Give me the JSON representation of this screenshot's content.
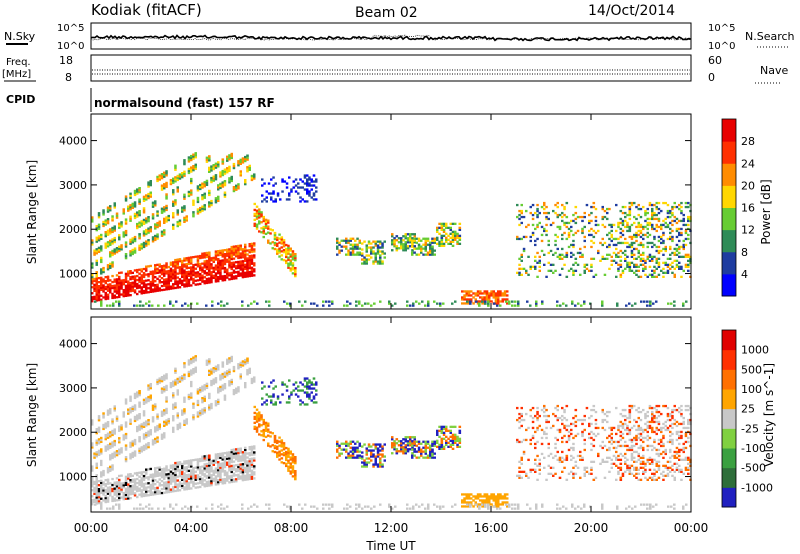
{
  "header": {
    "title": "Kodiak (fitACF)",
    "beam": "Beam 02",
    "date": "14/Oct/2014"
  },
  "nsky_panel": {
    "left_label": "N.Sky",
    "right_label": "N.Search",
    "left_ticks": [
      "10^5",
      "10^0"
    ],
    "right_ticks": [
      "10^5",
      "10^0"
    ]
  },
  "freq_panel": {
    "left_label_1": "Freq.",
    "left_label_2": "[MHz]",
    "right_label": "Nave",
    "left_ticks": [
      "18",
      "8"
    ],
    "right_ticks": [
      "60",
      "0"
    ]
  },
  "cpid_panel": {
    "label": "CPID",
    "text": "normalsound (fast) 157 RF"
  },
  "chart_data": [
    {
      "type": "heatmap",
      "name": "power",
      "ylabel": "Slant Range [km]",
      "yticks": [
        1000,
        2000,
        3000,
        4000
      ],
      "ylim": [
        200,
        4600
      ],
      "xlim": [
        0,
        24
      ],
      "colorbar_label": "Power [dB]",
      "colorbar_ticks": [
        "28",
        "24",
        "20",
        "16",
        "12",
        "8",
        "4"
      ],
      "colors": [
        "#0000ff",
        "#1e3ca0",
        "#2e8b57",
        "#66cc33",
        "#ffd700",
        "#ff8c00",
        "#ff3000",
        "#e80000"
      ]
    },
    {
      "type": "heatmap",
      "name": "velocity",
      "ylabel": "Slant Range [km]",
      "yticks": [
        1000,
        2000,
        3000,
        4000
      ],
      "ylim": [
        200,
        4600
      ],
      "xlim": [
        0,
        24
      ],
      "colorbar_label": "Velocity [m s^-1]",
      "colorbar_ticks": [
        "1000",
        "500",
        "100",
        "25",
        "-25",
        "-100",
        "-500",
        "-1000"
      ],
      "colors": [
        "#2020c0",
        "#2e6e3a",
        "#3aa040",
        "#80d040",
        "#c8c8c8",
        "#ffa500",
        "#ff7000",
        "#ff3000",
        "#e00000"
      ]
    }
  ],
  "xaxis": {
    "label": "Time UT",
    "ticks": [
      "00:00",
      "04:00",
      "08:00",
      "12:00",
      "16:00",
      "20:00",
      "00:00"
    ]
  }
}
